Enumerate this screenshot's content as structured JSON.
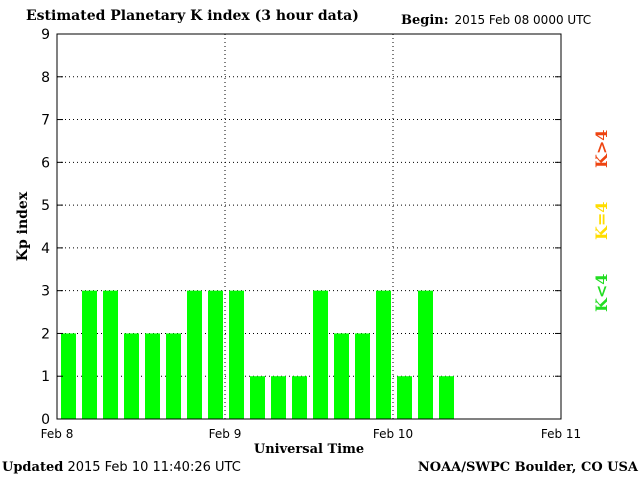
{
  "header": {
    "title": "Estimated Planetary K index (3 hour data)",
    "begin_label": "Begin:",
    "begin_value": "2015 Feb 08 0000 UTC"
  },
  "footer": {
    "updated_label": "Updated",
    "updated_value": "2015 Feb 10 11:40:26 UTC",
    "credit": "NOAA/SWPC Boulder, CO USA"
  },
  "legend": [
    {
      "label": "K<4",
      "color": "#22dd22"
    },
    {
      "label": "K=4",
      "color": "#ffdd00"
    },
    {
      "label": "K>4",
      "color": "#ee4411"
    }
  ],
  "chart_data": {
    "type": "bar",
    "title": "Estimated Planetary K index (3 hour data)",
    "xlabel": "Universal Time",
    "ylabel": "Kp index",
    "ylim": [
      0,
      9
    ],
    "yticks": [
      "0",
      "1",
      "2",
      "3",
      "4",
      "5",
      "6",
      "7",
      "8",
      "9"
    ],
    "xtick_labels": [
      "Feb 8",
      "Feb 9",
      "Feb 10",
      "Feb 11"
    ],
    "bar_interval_hours": 3,
    "values": [
      2,
      3,
      3,
      2,
      2,
      2,
      3,
      3,
      3,
      1,
      1,
      1,
      3,
      2,
      2,
      3,
      1,
      3,
      1
    ],
    "bar_color": "#00ff00",
    "grid": true,
    "grid_style": "dotted"
  }
}
